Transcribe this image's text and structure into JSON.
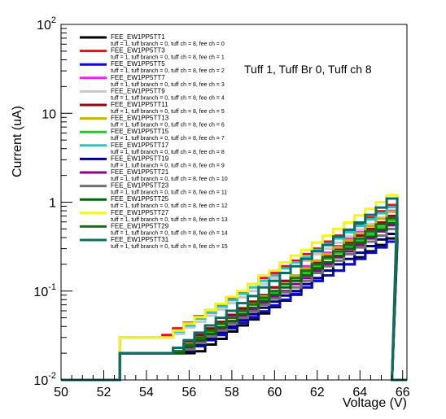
{
  "chart_data": {
    "type": "line",
    "step": true,
    "xlabel": "Voltage (V)",
    "ylabel": "Current (uA)",
    "annotation": "Tuff 1, Tuff Br 0, Tuff ch 8",
    "xlim": [
      50,
      66.2
    ],
    "ylim": [
      0.01,
      100
    ],
    "yscale": "log",
    "x_ticks": [
      50,
      52,
      54,
      56,
      58,
      60,
      62,
      64,
      66
    ],
    "y_ticks": [
      {
        "value": 0.01,
        "base": "10",
        "exp": "-2"
      },
      {
        "value": 0.1,
        "base": "10",
        "exp": "-1"
      },
      {
        "value": 1,
        "base": "1",
        "exp": ""
      },
      {
        "value": 10,
        "base": "10",
        "exp": ""
      },
      {
        "value": 100,
        "base": "10",
        "exp": "2"
      }
    ],
    "grid": false,
    "legend_position": "top-left",
    "series": [
      {
        "name": "FEE_EW1PP5TT1",
        "desc": "tuff = 1, tuff branch = 0, tuff ch = 8, fee ch = 0",
        "color": "#000000",
        "start": 0.02,
        "end": 0.39,
        "offset": 1.3
      },
      {
        "name": "FEE_EW1PP5TT3",
        "desc": "tuff = 1, tuff branch = 0, tuff ch = 8, fee ch = 1",
        "color": "#e3121b",
        "start": 0.03,
        "end": 0.93,
        "offset": -0.2
      },
      {
        "name": "FEE_EW1PP5TT5",
        "desc": "tuff = 1, tuff branch = 0, tuff ch = 8, fee ch = 2",
        "color": "#0a0ad0",
        "start": 0.02,
        "end": 0.36,
        "offset": 0.9
      },
      {
        "name": "FEE_EW1PP5TT7",
        "desc": "tuff = 1, tuff branch = 0, tuff ch = 8, fee ch = 3",
        "color": "#ee22ee",
        "start": 0.02,
        "end": 0.8,
        "offset": 0.4
      },
      {
        "name": "FEE_EW1PP5TT9",
        "desc": "tuff = 1, tuff branch = 0, tuff ch = 8, fee ch = 4",
        "color": "#c8c8c8",
        "start": 0.03,
        "end": 0.78,
        "offset": 0.2
      },
      {
        "name": "FEE_EW1PP5TT11",
        "desc": "tuff = 1, tuff branch = 0, tuff ch = 8, fee ch = 5",
        "color": "#8b0a0a",
        "start": 0.02,
        "end": 0.7,
        "offset": 0.1
      },
      {
        "name": "FEE_EW1PP5TT13",
        "desc": "tuff = 1, tuff branch = 0, tuff ch = 8, fee ch = 6",
        "color": "#c8b400",
        "start": 0.02,
        "end": 0.78,
        "offset": 0.5
      },
      {
        "name": "FEE_EW1PP5TT15",
        "desc": "tuff = 1, tuff branch = 0, tuff ch = 8, fee ch = 7",
        "color": "#22cc22",
        "start": 0.02,
        "end": 0.62,
        "offset": 0.3
      },
      {
        "name": "FEE_EW1PP5TT17",
        "desc": "tuff = 1, tuff branch = 0, tuff ch = 8, fee ch = 8",
        "color": "#22c8c0",
        "start": 0.03,
        "end": 0.88,
        "offset": 0.0
      },
      {
        "name": "FEE_EW1PP5TT19",
        "desc": "tuff = 1, tuff branch = 0, tuff ch = 8, fee ch = 9",
        "color": "#000080",
        "start": 0.02,
        "end": 0.44,
        "offset": 0.8
      },
      {
        "name": "FEE_EW1PP5TT21",
        "desc": "tuff = 1, tuff branch = 0, tuff ch = 8, fee ch = 10",
        "color": "#8b008b",
        "start": 0.02,
        "end": 0.55,
        "offset": 0.6
      },
      {
        "name": "FEE_EW1PP5TT23",
        "desc": "tuff = 1, tuff branch = 0, tuff ch = 8, fee ch = 11",
        "color": "#707070",
        "start": 0.02,
        "end": 0.5,
        "offset": 0.7
      },
      {
        "name": "FEE_EW1PP5TT25",
        "desc": "tuff = 1, tuff branch = 0, tuff ch = 8, fee ch = 12",
        "color": "#006400",
        "start": 0.02,
        "end": 0.58,
        "offset": 0.5
      },
      {
        "name": "FEE_EW1PP5TT27",
        "desc": "tuff = 1, tuff branch = 0, tuff ch = 8, fee ch = 13",
        "color": "#f5f51e",
        "start": 0.03,
        "end": 1.2,
        "offset": 0.0
      },
      {
        "name": "FEE_EW1PP5TT29",
        "desc": "tuff = 1, tuff branch = 0, tuff ch = 8, fee ch = 14",
        "color": "#1b6b1b",
        "start": 0.02,
        "end": 0.66,
        "offset": 0.3
      },
      {
        "name": "FEE_EW1PP5TT31",
        "desc": "tuff = 1, tuff branch = 0, tuff ch = 8, fee ch = 15",
        "color": "#0a6e64",
        "start": 0.02,
        "end": 1.05,
        "offset": 0.1
      }
    ]
  }
}
